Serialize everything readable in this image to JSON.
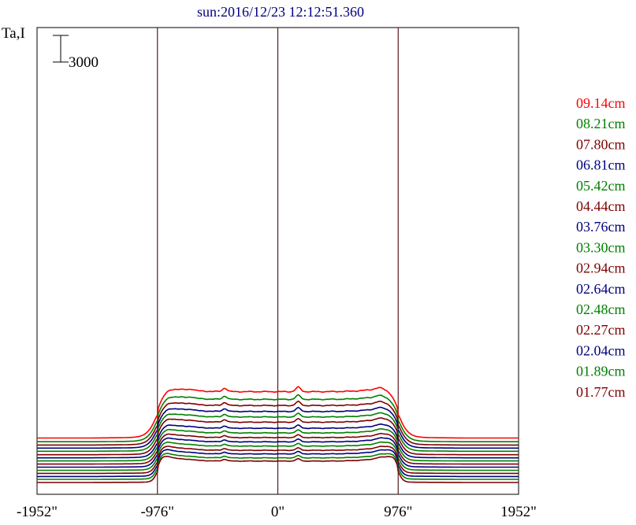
{
  "chart_data": {
    "type": "line",
    "title": "sun:2016/12/23 12:12:51.360",
    "ylabel": "Ta,I",
    "scale_bar_label": "3000",
    "scale_bar_value": 3000,
    "xlim": [
      -1952,
      1952
    ],
    "x_ticks": [
      {
        "value": -1952,
        "label": "-1952\""
      },
      {
        "value": -976,
        "label": "-976\""
      },
      {
        "value": 0,
        "label": "0\""
      },
      {
        "value": 976,
        "label": "976\""
      },
      {
        "value": 1952,
        "label": "1952\""
      }
    ],
    "vlines": [
      -976,
      0,
      976
    ],
    "legend_position": "right",
    "palette": {
      "red": "#ff0000",
      "green": "#008000",
      "maroon": "#800000",
      "navy": "#000080",
      "axis": "#000000",
      "title": "#000080"
    },
    "series": [
      {
        "name": "09.14cm",
        "color": "#ff0000",
        "baseline": 4650,
        "disk": 10250,
        "wave": 0.2
      },
      {
        "name": "08.21cm",
        "color": "#008000",
        "baseline": 4230,
        "disk": 9370,
        "wave": 0.21
      },
      {
        "name": "07.80cm",
        "color": "#800000",
        "baseline": 3860,
        "disk": 8670,
        "wave": 0.22
      },
      {
        "name": "06.81cm",
        "color": "#000080",
        "baseline": 3510,
        "disk": 7990,
        "wave": 0.23
      },
      {
        "name": "05.42cm",
        "color": "#008000",
        "baseline": 3160,
        "disk": 7370,
        "wave": 0.24
      },
      {
        "name": "04.44cm",
        "color": "#800000",
        "baseline": 2770,
        "disk": 6780,
        "wave": 0.25
      },
      {
        "name": "03.76cm",
        "color": "#000080",
        "baseline": 2420,
        "disk": 6080,
        "wave": 0.26
      },
      {
        "name": "03.30cm",
        "color": "#008000",
        "baseline": 2070,
        "disk": 5550,
        "wave": 0.27
      },
      {
        "name": "02.94cm",
        "color": "#800000",
        "baseline": 1720,
        "disk": 5020,
        "wave": 0.28
      },
      {
        "name": "02.64cm",
        "color": "#000080",
        "baseline": 1370,
        "disk": 4540,
        "wave": 0.29
      },
      {
        "name": "02.48cm",
        "color": "#008000",
        "baseline": 1020,
        "disk": 4060,
        "wave": 0.3
      },
      {
        "name": "02.27cm",
        "color": "#800000",
        "baseline": 670,
        "disk": 3580,
        "wave": 0.31
      },
      {
        "name": "02.04cm",
        "color": "#000080",
        "baseline": 320,
        "disk": 3180,
        "wave": 0.32
      },
      {
        "name": "01.89cm",
        "color": "#008000",
        "baseline": 0,
        "disk": 2730,
        "wave": 0.33
      },
      {
        "name": "01.77cm",
        "color": "#800000",
        "baseline": -350,
        "disk": 2380,
        "wave": 0.34
      }
    ]
  }
}
